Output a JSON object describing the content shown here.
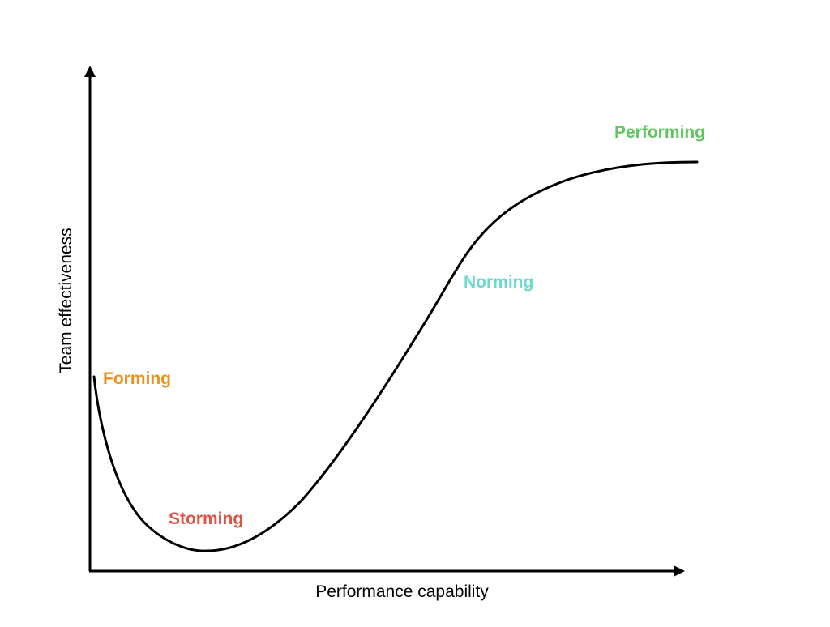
{
  "axes": {
    "x_label": "Performance capability",
    "y_label": "Team effectiveness"
  },
  "stages": [
    {
      "id": "forming",
      "label": "Forming",
      "color": "#E8931F"
    },
    {
      "id": "storming",
      "label": "Storming",
      "color": "#DD5346"
    },
    {
      "id": "norming",
      "label": "Norming",
      "color": "#6FD9CE"
    },
    {
      "id": "performing",
      "label": "Performing",
      "color": "#63C466"
    }
  ],
  "colors": {
    "curve": "#000000",
    "axes": "#000000",
    "background": "#FFFFFF"
  }
}
